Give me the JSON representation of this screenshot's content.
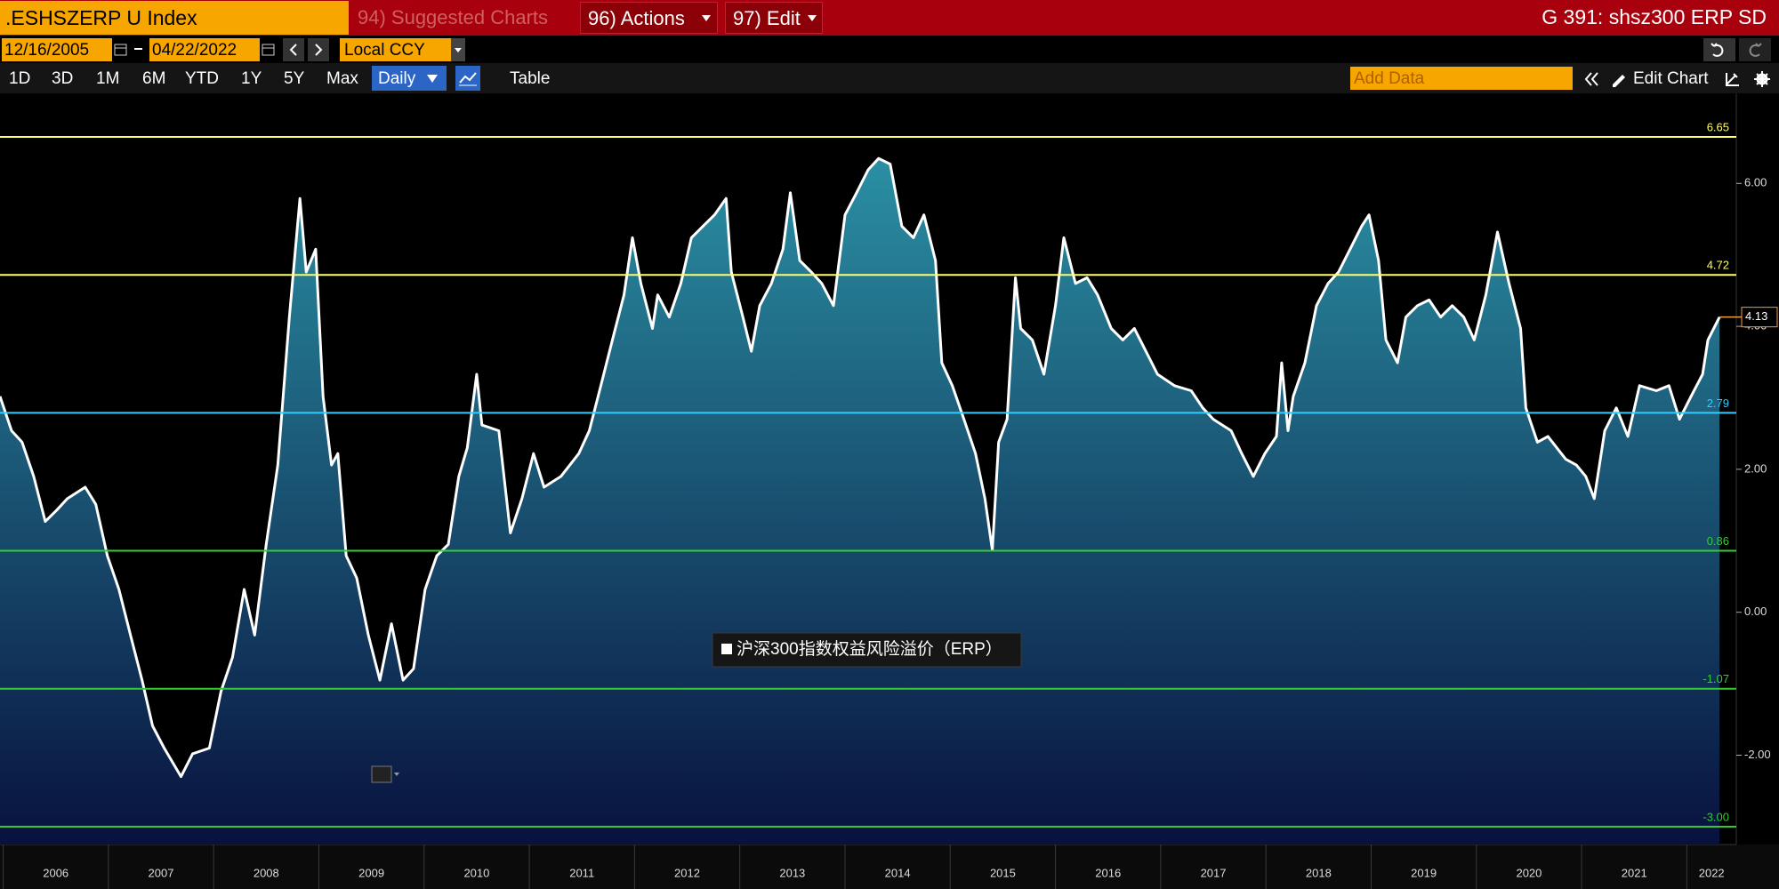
{
  "toolbar": {
    "ticker": ".ESHSZERP U Index",
    "suggested": "94) Suggested Charts",
    "actions": "96) Actions",
    "edit": "97) Edit",
    "page_title": "G 391: shsz300 ERP SD",
    "start_date": "12/16/2005",
    "end_date": "04/22/2022",
    "currency": "Local CCY",
    "ranges": [
      "1D",
      "3D",
      "1M",
      "6M",
      "YTD",
      "1Y",
      "5Y",
      "Max"
    ],
    "frequency": "Daily",
    "table": "Table",
    "add_data": "Add Data",
    "edit_chart": "Edit Chart"
  },
  "chart_data": {
    "type": "area",
    "x": [
      2005.97,
      2006.08,
      2006.18,
      2006.29,
      2006.4,
      2006.51,
      2006.61,
      2006.78,
      2006.88,
      2006.99,
      2007.1,
      2007.21,
      2007.32,
      2007.42,
      2007.53,
      2007.69,
      2007.8,
      2007.96,
      2008.07,
      2008.18,
      2008.29,
      2008.39,
      2008.5,
      2008.61,
      2008.72,
      2008.82,
      2008.88,
      2008.97,
      2009.04,
      2009.12,
      2009.18,
      2009.26,
      2009.36,
      2009.47,
      2009.58,
      2009.69,
      2009.8,
      2009.9,
      2010.01,
      2010.12,
      2010.23,
      2010.33,
      2010.41,
      2010.5,
      2010.55,
      2010.71,
      2010.82,
      2010.93,
      2011.04,
      2011.14,
      2011.3,
      2011.47,
      2011.57,
      2011.68,
      2011.79,
      2011.9,
      2011.98,
      2012.06,
      2012.17,
      2012.22,
      2012.33,
      2012.44,
      2012.54,
      2012.65,
      2012.76,
      2012.87,
      2012.92,
      2013.03,
      2013.11,
      2013.19,
      2013.3,
      2013.41,
      2013.48,
      2013.57,
      2013.68,
      2013.78,
      2013.89,
      2014.0,
      2014.11,
      2014.22,
      2014.32,
      2014.43,
      2014.54,
      2014.65,
      2014.75,
      2014.86,
      2014.92,
      2015.02,
      2015.13,
      2015.24,
      2015.33,
      2015.4,
      2015.46,
      2015.54,
      2015.62,
      2015.67,
      2015.78,
      2015.89,
      2016.0,
      2016.08,
      2016.19,
      2016.3,
      2016.4,
      2016.53,
      2016.64,
      2016.75,
      2016.86,
      2016.97,
      2017.13,
      2017.29,
      2017.4,
      2017.5,
      2017.67,
      2017.77,
      2017.88,
      2017.99,
      2018.1,
      2018.15,
      2018.21,
      2018.26,
      2018.37,
      2018.48,
      2018.59,
      2018.69,
      2018.8,
      2018.91,
      2018.98,
      2019.07,
      2019.14,
      2019.25,
      2019.33,
      2019.44,
      2019.55,
      2019.66,
      2019.77,
      2019.88,
      2019.98,
      2020.09,
      2020.2,
      2020.31,
      2020.42,
      2020.47,
      2020.58,
      2020.68,
      2020.85,
      2020.95,
      2021.04,
      2021.12,
      2021.22,
      2021.33,
      2021.44,
      2021.55,
      2021.71,
      2021.83,
      2021.93,
      2022.04,
      2022.15,
      2022.2,
      2022.31
    ],
    "series": [
      {
        "name": "沪深300指数权益风险溢价（ERP）",
        "color": "#ffffff",
        "values": [
          3.02,
          2.54,
          2.38,
          1.9,
          1.27,
          1.43,
          1.59,
          1.75,
          1.51,
          0.79,
          0.32,
          -0.32,
          -0.95,
          -1.59,
          -1.9,
          -2.3,
          -1.98,
          -1.9,
          -1.11,
          -0.63,
          0.32,
          -0.32,
          0.95,
          2.06,
          4.13,
          5.79,
          4.76,
          5.08,
          3.02,
          2.06,
          2.22,
          0.79,
          0.48,
          -0.32,
          -0.95,
          -0.16,
          -0.95,
          -0.79,
          0.32,
          0.79,
          0.95,
          1.9,
          2.3,
          3.33,
          2.62,
          2.54,
          1.11,
          1.59,
          2.22,
          1.75,
          1.9,
          2.22,
          2.54,
          3.17,
          3.81,
          4.44,
          5.24,
          4.6,
          3.97,
          4.44,
          4.13,
          4.6,
          5.24,
          5.4,
          5.56,
          5.79,
          4.76,
          4.13,
          3.65,
          4.29,
          4.6,
          5.08,
          5.87,
          4.92,
          4.76,
          4.6,
          4.29,
          5.56,
          5.87,
          6.19,
          6.35,
          6.27,
          5.4,
          5.24,
          5.56,
          4.92,
          3.49,
          3.17,
          2.7,
          2.22,
          1.59,
          0.87,
          2.38,
          2.7,
          4.68,
          3.97,
          3.81,
          3.33,
          4.29,
          5.24,
          4.6,
          4.68,
          4.44,
          3.97,
          3.81,
          3.97,
          3.65,
          3.33,
          3.17,
          3.1,
          2.86,
          2.7,
          2.54,
          2.22,
          1.9,
          2.22,
          2.46,
          3.49,
          2.54,
          3.02,
          3.49,
          4.29,
          4.6,
          4.76,
          5.08,
          5.4,
          5.56,
          4.92,
          3.81,
          3.49,
          4.13,
          4.29,
          4.37,
          4.13,
          4.29,
          4.13,
          3.81,
          4.44,
          5.32,
          4.6,
          3.97,
          2.86,
          2.38,
          2.46,
          2.14,
          2.06,
          1.9,
          1.59,
          2.54,
          2.86,
          2.46,
          3.17,
          3.1,
          3.17,
          2.7,
          3.02,
          3.33,
          3.81,
          4.13
        ]
      }
    ],
    "fill_top": "#2a8fa3",
    "fill_bottom": "#08123e",
    "xlim": [
      2005.97,
      2022.47
    ],
    "xticks": [
      2006,
      2007,
      2008,
      2009,
      2010,
      2011,
      2012,
      2013,
      2014,
      2015,
      2016,
      2017,
      2018,
      2019,
      2020,
      2021,
      2022
    ],
    "ylim": [
      -3.25,
      7.26
    ],
    "yticks": [
      {
        "value": 6,
        "label": "6.00"
      },
      {
        "value": 4,
        "label": "4.00"
      },
      {
        "value": 2,
        "label": "2.00"
      },
      {
        "value": 0,
        "label": "0.00"
      },
      {
        "value": -2,
        "label": "-2.00"
      }
    ],
    "reference_lines": [
      {
        "value": 6.65,
        "color": "#ffff66"
      },
      {
        "value": 4.72,
        "color": "#ffff66"
      },
      {
        "value": 2.79,
        "color": "#33ccff"
      },
      {
        "value": 0.86,
        "color": "#33cc33"
      },
      {
        "value": -1.07,
        "color": "#33cc33"
      },
      {
        "value": -3,
        "label": "-3.00",
        "color": "#33cc33"
      }
    ],
    "last_value_color": "#f0a040"
  }
}
